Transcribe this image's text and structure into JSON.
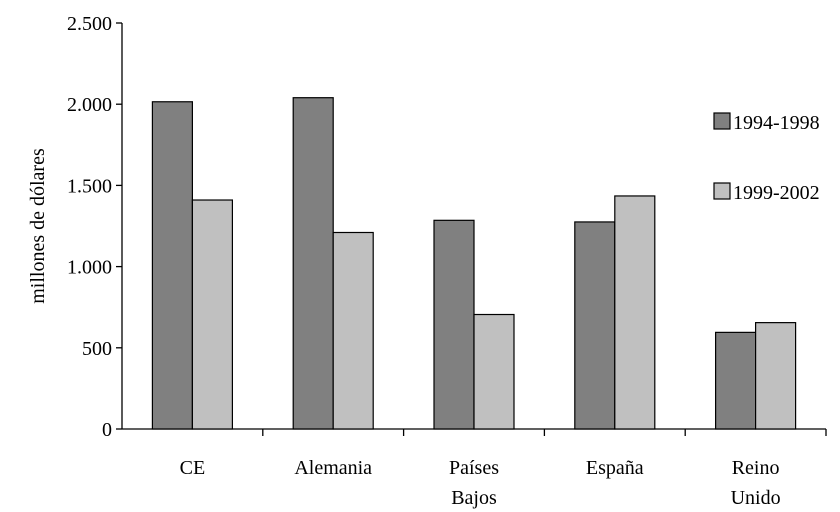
{
  "chart_data": {
    "type": "bar",
    "categories": [
      "CE",
      "Alemania",
      "Países Bajos",
      "España",
      "Reino Unido"
    ],
    "category_lines": [
      [
        "CE"
      ],
      [
        "Alemania"
      ],
      [
        "Países",
        "Bajos"
      ],
      [
        "España"
      ],
      [
        "Reino",
        "Unido"
      ]
    ],
    "series": [
      {
        "name": "1994-1998",
        "values": [
          2015,
          2040,
          1285,
          1275,
          595
        ],
        "color": "#808080"
      },
      {
        "name": "1999-2002",
        "values": [
          1410,
          1210,
          705,
          1435,
          655
        ],
        "color": "#c0c0c0"
      }
    ],
    "title": "",
    "xlabel": "",
    "ylabel": "millones de dólares",
    "ylim": [
      0,
      2500
    ],
    "yticks": [
      0,
      500,
      1000,
      1500,
      2000,
      2500
    ],
    "ytick_labels": [
      "0",
      "500",
      "1.000",
      "1.500",
      "2.000",
      "2.500"
    ],
    "grid": false,
    "legend_position": "right"
  }
}
